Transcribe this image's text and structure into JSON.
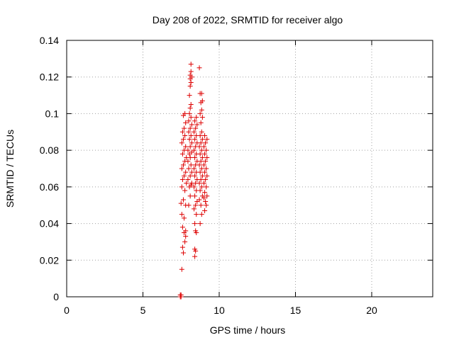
{
  "chart_data": {
    "type": "scatter",
    "title": "Day 208 of 2022, SRMTID for receiver algo",
    "xlabel": "GPS time / hours",
    "ylabel": "SRMTID / TECUs",
    "xlim": [
      0,
      24
    ],
    "ylim": [
      0,
      0.14
    ],
    "xticks": [
      "0",
      "5",
      "10",
      "15",
      "20"
    ],
    "yticks": [
      "0",
      "0.02",
      "0.04",
      "0.06",
      "0.08",
      "0.1",
      "0.12",
      "0.14"
    ],
    "xtick_values": [
      0,
      5,
      10,
      15,
      20
    ],
    "ytick_values": [
      0,
      0.02,
      0.04,
      0.06,
      0.08,
      0.1,
      0.12,
      0.14
    ],
    "grid": true,
    "marker": "+",
    "series_color": "#dd0000",
    "points": [
      [
        7.45,
        0.0
      ],
      [
        7.45,
        0.001
      ],
      [
        7.5,
        0.0
      ],
      [
        7.5,
        0.001
      ],
      [
        7.55,
        0.015
      ],
      [
        7.6,
        0.027
      ],
      [
        7.65,
        0.024
      ],
      [
        7.75,
        0.03
      ],
      [
        7.8,
        0.033
      ],
      [
        7.7,
        0.035
      ],
      [
        7.8,
        0.036
      ],
      [
        7.6,
        0.038
      ],
      [
        7.7,
        0.043
      ],
      [
        7.55,
        0.045
      ],
      [
        7.8,
        0.05
      ],
      [
        7.5,
        0.051
      ],
      [
        7.65,
        0.053
      ],
      [
        7.75,
        0.058
      ],
      [
        7.55,
        0.06
      ],
      [
        7.85,
        0.062
      ],
      [
        7.6,
        0.064
      ],
      [
        7.7,
        0.066
      ],
      [
        7.8,
        0.068
      ],
      [
        7.55,
        0.07
      ],
      [
        7.65,
        0.072
      ],
      [
        7.75,
        0.074
      ],
      [
        7.85,
        0.076
      ],
      [
        7.6,
        0.078
      ],
      [
        7.7,
        0.08
      ],
      [
        7.8,
        0.082
      ],
      [
        7.55,
        0.084
      ],
      [
        7.65,
        0.086
      ],
      [
        7.75,
        0.088
      ],
      [
        7.6,
        0.09
      ],
      [
        7.7,
        0.092
      ],
      [
        7.8,
        0.095
      ],
      [
        7.65,
        0.099
      ],
      [
        7.75,
        0.1
      ],
      [
        8.0,
        0.05
      ],
      [
        8.1,
        0.055
      ],
      [
        8.05,
        0.06
      ],
      [
        8.15,
        0.061
      ],
      [
        8.2,
        0.062
      ],
      [
        7.95,
        0.064
      ],
      [
        8.1,
        0.066
      ],
      [
        8.2,
        0.068
      ],
      [
        8.0,
        0.07
      ],
      [
        8.15,
        0.072
      ],
      [
        7.95,
        0.074
      ],
      [
        8.1,
        0.076
      ],
      [
        8.05,
        0.078
      ],
      [
        8.2,
        0.079
      ],
      [
        7.95,
        0.08
      ],
      [
        8.1,
        0.082
      ],
      [
        8.2,
        0.084
      ],
      [
        8.05,
        0.086
      ],
      [
        8.15,
        0.088
      ],
      [
        8.0,
        0.09
      ],
      [
        8.1,
        0.092
      ],
      [
        8.2,
        0.094
      ],
      [
        8.0,
        0.096
      ],
      [
        8.15,
        0.098
      ],
      [
        8.05,
        0.1
      ],
      [
        8.1,
        0.103
      ],
      [
        8.15,
        0.105
      ],
      [
        8.05,
        0.11
      ],
      [
        8.1,
        0.115
      ],
      [
        8.15,
        0.117
      ],
      [
        8.1,
        0.119
      ],
      [
        8.2,
        0.12
      ],
      [
        8.1,
        0.121
      ],
      [
        8.15,
        0.123
      ],
      [
        8.15,
        0.127
      ],
      [
        8.4,
        0.022
      ],
      [
        8.45,
        0.025
      ],
      [
        8.4,
        0.026
      ],
      [
        8.5,
        0.035
      ],
      [
        8.45,
        0.036
      ],
      [
        8.4,
        0.04
      ],
      [
        8.5,
        0.045
      ],
      [
        8.35,
        0.048
      ],
      [
        8.45,
        0.05
      ],
      [
        8.55,
        0.052
      ],
      [
        8.4,
        0.055
      ],
      [
        8.5,
        0.058
      ],
      [
        8.35,
        0.06
      ],
      [
        8.45,
        0.062
      ],
      [
        8.55,
        0.064
      ],
      [
        8.4,
        0.066
      ],
      [
        8.5,
        0.068
      ],
      [
        8.35,
        0.07
      ],
      [
        8.45,
        0.072
      ],
      [
        8.55,
        0.074
      ],
      [
        8.4,
        0.076
      ],
      [
        8.5,
        0.078
      ],
      [
        8.35,
        0.08
      ],
      [
        8.45,
        0.082
      ],
      [
        8.55,
        0.084
      ],
      [
        8.4,
        0.086
      ],
      [
        8.5,
        0.088
      ],
      [
        8.35,
        0.09
      ],
      [
        8.45,
        0.092
      ],
      [
        8.55,
        0.094
      ],
      [
        8.4,
        0.096
      ],
      [
        8.5,
        0.098
      ],
      [
        8.75,
        0.04
      ],
      [
        8.85,
        0.045
      ],
      [
        8.8,
        0.05
      ],
      [
        8.7,
        0.053
      ],
      [
        8.9,
        0.055
      ],
      [
        8.75,
        0.058
      ],
      [
        8.85,
        0.06
      ],
      [
        8.7,
        0.062
      ],
      [
        8.8,
        0.064
      ],
      [
        8.9,
        0.066
      ],
      [
        8.75,
        0.068
      ],
      [
        8.85,
        0.07
      ],
      [
        8.7,
        0.072
      ],
      [
        8.8,
        0.074
      ],
      [
        8.9,
        0.076
      ],
      [
        8.75,
        0.078
      ],
      [
        8.85,
        0.08
      ],
      [
        8.7,
        0.082
      ],
      [
        8.8,
        0.084
      ],
      [
        8.9,
        0.086
      ],
      [
        8.75,
        0.088
      ],
      [
        8.85,
        0.09
      ],
      [
        8.8,
        0.095
      ],
      [
        8.9,
        0.098
      ],
      [
        8.75,
        0.1
      ],
      [
        8.85,
        0.102
      ],
      [
        8.8,
        0.106
      ],
      [
        8.9,
        0.107
      ],
      [
        8.75,
        0.111
      ],
      [
        8.85,
        0.111
      ],
      [
        8.7,
        0.125
      ],
      [
        9.05,
        0.047
      ],
      [
        9.15,
        0.05
      ],
      [
        9.1,
        0.052
      ],
      [
        9.0,
        0.054
      ],
      [
        9.2,
        0.055
      ],
      [
        9.05,
        0.057
      ],
      [
        9.15,
        0.06
      ],
      [
        9.0,
        0.062
      ],
      [
        9.1,
        0.064
      ],
      [
        9.2,
        0.066
      ],
      [
        9.05,
        0.068
      ],
      [
        9.15,
        0.07
      ],
      [
        9.0,
        0.072
      ],
      [
        9.1,
        0.074
      ],
      [
        9.2,
        0.076
      ],
      [
        9.05,
        0.078
      ],
      [
        9.15,
        0.08
      ],
      [
        9.0,
        0.082
      ],
      [
        9.1,
        0.084
      ],
      [
        9.2,
        0.086
      ],
      [
        9.05,
        0.088
      ]
    ]
  }
}
